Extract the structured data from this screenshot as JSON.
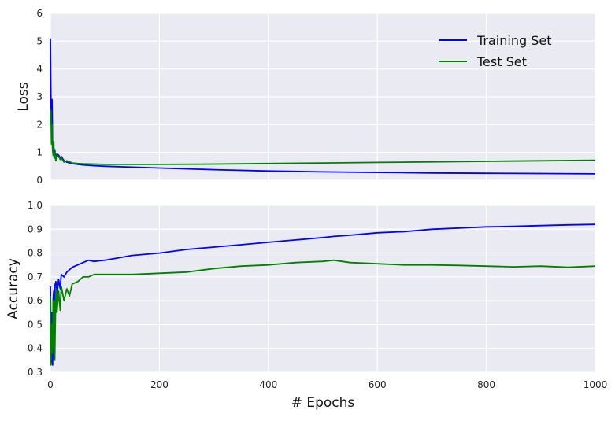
{
  "chart_data": [
    {
      "type": "line",
      "title": "",
      "xlabel": "",
      "ylabel": "Loss",
      "xlim": [
        0,
        1000
      ],
      "ylim": [
        0,
        6
      ],
      "x_ticks": [
        0,
        200,
        400,
        600,
        800,
        1000
      ],
      "y_ticks": [
        0,
        1,
        2,
        3,
        4,
        5,
        6
      ],
      "x_tick_labels_shown": false,
      "grid": true,
      "legend_position": "top-right",
      "series": [
        {
          "name": "Training Set",
          "color": "#0000ff",
          "x": [
            0,
            1,
            2,
            3,
            4,
            5,
            6,
            7,
            8,
            10,
            12,
            15,
            18,
            20,
            25,
            30,
            40,
            50,
            60,
            80,
            100,
            150,
            200,
            300,
            400,
            500,
            600,
            700,
            800,
            900,
            1000
          ],
          "y": [
            5.1,
            3.0,
            1.9,
            2.9,
            1.2,
            0.9,
            1.0,
            0.8,
            1.1,
            0.75,
            0.95,
            0.9,
            0.8,
            0.85,
            0.7,
            0.65,
            0.6,
            0.57,
            0.55,
            0.52,
            0.5,
            0.47,
            0.44,
            0.38,
            0.33,
            0.3,
            0.28,
            0.26,
            0.25,
            0.24,
            0.23
          ]
        },
        {
          "name": "Test Set",
          "color": "#008000",
          "x": [
            0,
            1,
            2,
            3,
            4,
            5,
            6,
            7,
            8,
            10,
            12,
            15,
            18,
            20,
            25,
            30,
            40,
            50,
            60,
            80,
            100,
            150,
            200,
            300,
            400,
            500,
            600,
            700,
            800,
            900,
            1000
          ],
          "y": [
            2.0,
            2.5,
            1.3,
            2.0,
            1.1,
            0.9,
            1.4,
            0.8,
            1.0,
            0.7,
            0.9,
            0.85,
            0.75,
            0.8,
            0.65,
            0.7,
            0.62,
            0.6,
            0.59,
            0.58,
            0.57,
            0.57,
            0.57,
            0.58,
            0.6,
            0.62,
            0.64,
            0.66,
            0.68,
            0.7,
            0.72
          ]
        }
      ]
    },
    {
      "type": "line",
      "title": "",
      "xlabel": "# Epochs",
      "ylabel": "Accuracy",
      "xlim": [
        0,
        1000
      ],
      "ylim": [
        0.3,
        1.0
      ],
      "x_ticks": [
        0,
        200,
        400,
        600,
        800,
        1000
      ],
      "y_ticks": [
        0.3,
        0.4,
        0.5,
        0.6,
        0.7,
        0.8,
        0.9,
        1.0
      ],
      "grid": true,
      "series": [
        {
          "name": "Training Set",
          "color": "#0000ff",
          "x": [
            0,
            1,
            2,
            3,
            4,
            5,
            6,
            7,
            8,
            10,
            12,
            15,
            18,
            20,
            25,
            30,
            40,
            50,
            60,
            70,
            80,
            100,
            150,
            200,
            250,
            300,
            350,
            400,
            450,
            500,
            520,
            550,
            600,
            650,
            700,
            750,
            800,
            850,
            900,
            950,
            1000
          ],
          "y": [
            0.66,
            0.4,
            0.34,
            0.55,
            0.33,
            0.6,
            0.64,
            0.35,
            0.66,
            0.68,
            0.62,
            0.69,
            0.65,
            0.71,
            0.7,
            0.72,
            0.74,
            0.75,
            0.76,
            0.77,
            0.765,
            0.77,
            0.79,
            0.8,
            0.815,
            0.825,
            0.835,
            0.845,
            0.855,
            0.865,
            0.87,
            0.875,
            0.885,
            0.89,
            0.9,
            0.905,
            0.91,
            0.912,
            0.915,
            0.918,
            0.92
          ]
        },
        {
          "name": "Test Set",
          "color": "#008000",
          "x": [
            0,
            1,
            2,
            3,
            4,
            5,
            6,
            7,
            8,
            10,
            12,
            15,
            18,
            20,
            25,
            30,
            35,
            40,
            50,
            60,
            70,
            80,
            100,
            150,
            200,
            250,
            300,
            350,
            400,
            450,
            500,
            520,
            550,
            600,
            650,
            700,
            750,
            800,
            850,
            900,
            950,
            1000
          ],
          "y": [
            0.62,
            0.33,
            0.45,
            0.5,
            0.38,
            0.6,
            0.4,
            0.6,
            0.35,
            0.65,
            0.55,
            0.64,
            0.56,
            0.66,
            0.6,
            0.65,
            0.62,
            0.67,
            0.68,
            0.7,
            0.7,
            0.71,
            0.71,
            0.71,
            0.715,
            0.72,
            0.735,
            0.745,
            0.75,
            0.76,
            0.765,
            0.77,
            0.76,
            0.755,
            0.75,
            0.75,
            0.748,
            0.745,
            0.742,
            0.745,
            0.74,
            0.745
          ]
        }
      ]
    }
  ]
}
